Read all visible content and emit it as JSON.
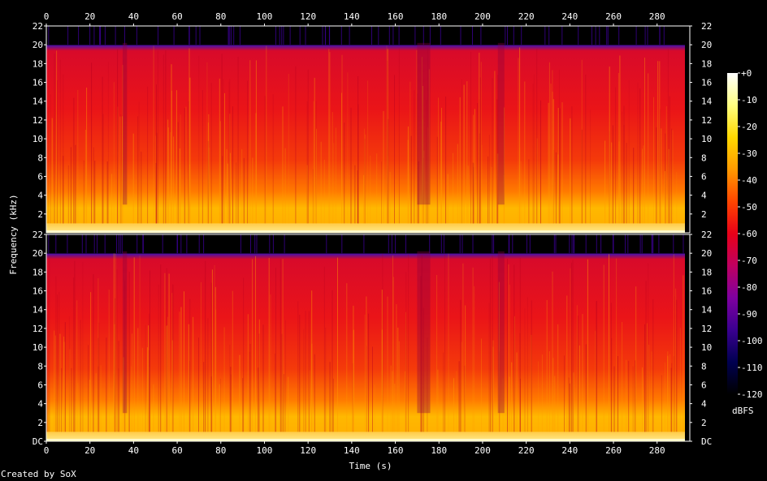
{
  "chart_data": {
    "type": "heatmap",
    "subtype": "spectrogram",
    "title": "",
    "xlabel": "Time (s)",
    "ylabel": "Frequency (kHz)",
    "xlim": [
      0,
      295
    ],
    "ylim": [
      0,
      22
    ],
    "x_ticks": [
      0,
      20,
      40,
      60,
      80,
      100,
      120,
      140,
      160,
      180,
      200,
      220,
      240,
      260,
      280
    ],
    "y_ticks": [
      "DC",
      "2",
      "4",
      "6",
      "8",
      "10",
      "12",
      "14",
      "16",
      "18",
      "20",
      "22"
    ],
    "channels": 2,
    "frequency_cutoff_khz": 20,
    "energy_by_band_dbfs": [
      {
        "band_khz": [
          0,
          2
        ],
        "level": -30
      },
      {
        "band_khz": [
          2,
          4
        ],
        "level": -40
      },
      {
        "band_khz": [
          4,
          8
        ],
        "level": -50
      },
      {
        "band_khz": [
          8,
          20
        ],
        "level": -58
      },
      {
        "band_khz": [
          20,
          22
        ],
        "level": -120
      }
    ],
    "quiet_segments_s": [
      [
        35,
        37
      ],
      [
        170,
        176
      ],
      [
        207,
        210
      ]
    ],
    "colorbar": {
      "label": "dBFS",
      "ticks": [
        "+0",
        "-10",
        "-20",
        "-30",
        "-40",
        "-50",
        "-60",
        "-70",
        "-80",
        "-90",
        "-100",
        "-110",
        "-120"
      ],
      "range": [
        -120,
        0
      ],
      "colors": [
        "#000000",
        "#000050",
        "#3a0090",
        "#7f00a0",
        "#bf0060",
        "#e80018",
        "#ff4600",
        "#ff9a00",
        "#ffd800",
        "#ffff80",
        "#ffffff"
      ]
    }
  },
  "footer": {
    "credit": "Created by SoX"
  }
}
